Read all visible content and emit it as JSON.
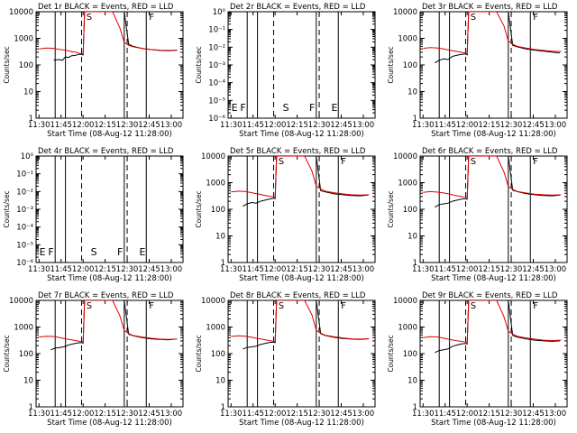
{
  "page": {
    "background": "#ffffff",
    "event_color": "#000000",
    "lld_color": "#e00000"
  },
  "common": {
    "x_tick_labels": [
      "11:30",
      "11:45",
      "12:00",
      "12:15",
      "12:30",
      "12:45",
      "13:00"
    ],
    "xlabel": "Start Time (08-Aug-12 11:28:00)",
    "ylabel": "Counts/sec",
    "log_tick_labels": [
      "1",
      "10",
      "100",
      "1000",
      "10000"
    ],
    "empty_tick_labels": [
      "10⁰",
      "10⁻¹",
      "10⁻²",
      "10⁻³",
      "10⁻⁴",
      "10⁻⁵",
      "10⁻⁶"
    ],
    "markers": [
      "E",
      "F",
      "S",
      "F",
      "E"
    ],
    "s_markers": [
      "S",
      "F"
    ]
  },
  "chart_data": [
    {
      "type": "line",
      "title": "Det 1r BLACK = Events, RED = LLD",
      "empty": false,
      "yscale": "log",
      "ylim": [
        1,
        10000
      ],
      "xlim": [
        "11:28",
        "13:08"
      ],
      "vlines_solid": [
        "11:41",
        "11:48",
        "12:28",
        "12:43"
      ],
      "vlines_dashed": [
        "11:59",
        "12:30"
      ],
      "series": [
        {
          "name": "BLACK = Events",
          "color": "#000000",
          "x": [
            "11:40",
            "11:43",
            "11:46",
            "11:48",
            "11:50",
            "11:52",
            "11:55",
            "11:57",
            "11:59",
            "12:00",
            "12:01",
            "12:28",
            "12:31",
            "12:34",
            "12:40",
            "12:46",
            "12:52",
            "12:58",
            "13:04"
          ],
          "y": [
            150,
            160,
            150,
            200,
            190,
            220,
            230,
            250,
            250,
            240,
            10000,
            10000,
            600,
            500,
            420,
            380,
            350,
            340,
            360
          ]
        },
        {
          "name": "RED = LLD",
          "color": "#e00000",
          "x": [
            "11:30",
            "11:35",
            "11:40",
            "11:44",
            "11:48",
            "11:52",
            "11:55",
            "11:58",
            "12:00",
            "12:01",
            "12:20",
            "12:25",
            "12:28",
            "12:31",
            "12:34",
            "12:40",
            "12:46",
            "12:52",
            "12:58",
            "13:04"
          ],
          "y": [
            400,
            430,
            420,
            380,
            360,
            320,
            300,
            270,
            260,
            10000,
            10000,
            2500,
            700,
            550,
            480,
            420,
            380,
            360,
            350,
            360
          ]
        }
      ]
    },
    {
      "type": "line",
      "title": "Det 2r BLACK = Events, RED = LLD",
      "empty": true,
      "yscale": "log",
      "ylim": [
        1e-06,
        1
      ],
      "xlim": [
        "11:28",
        "13:08"
      ],
      "vlines_solid": [
        "11:41",
        "11:48",
        "12:28",
        "12:43"
      ],
      "vlines_dashed": [
        "11:59",
        "12:30"
      ],
      "series": []
    },
    {
      "type": "line",
      "title": "Det 3r BLACK = Events, RED = LLD",
      "empty": false,
      "yscale": "log",
      "ylim": [
        1,
        10000
      ],
      "xlim": [
        "11:28",
        "13:08"
      ],
      "vlines_solid": [
        "11:41",
        "11:48",
        "12:28",
        "12:43"
      ],
      "vlines_dashed": [
        "11:59",
        "12:30"
      ],
      "series": [
        {
          "name": "BLACK = Events",
          "color": "#000000",
          "x": [
            "11:38",
            "11:41",
            "11:44",
            "11:47",
            "11:50",
            "11:53",
            "11:56",
            "11:59",
            "12:00",
            "12:01",
            "12:28",
            "12:31",
            "12:34",
            "12:40",
            "12:46",
            "12:52",
            "12:58",
            "13:03"
          ],
          "y": [
            120,
            150,
            170,
            160,
            210,
            230,
            250,
            260,
            240,
            10000,
            10000,
            550,
            480,
            400,
            360,
            330,
            300,
            280
          ]
        },
        {
          "name": "RED = LLD",
          "color": "#e00000",
          "x": [
            "11:30",
            "11:35",
            "11:40",
            "11:44",
            "11:48",
            "11:52",
            "11:56",
            "11:59",
            "12:00",
            "12:01",
            "12:20",
            "12:25",
            "12:28",
            "12:31",
            "12:34",
            "12:40",
            "12:46",
            "12:52",
            "12:58",
            "13:04"
          ],
          "y": [
            420,
            450,
            430,
            400,
            360,
            330,
            300,
            280,
            270,
            10000,
            10000,
            3000,
            800,
            600,
            500,
            430,
            380,
            350,
            330,
            320
          ]
        }
      ]
    },
    {
      "type": "line",
      "title": "Det 4r BLACK = Events, RED = LLD",
      "empty": true,
      "yscale": "log",
      "ylim": [
        1e-06,
        1
      ],
      "xlim": [
        "11:28",
        "13:08"
      ],
      "vlines_solid": [
        "11:41",
        "11:48",
        "12:28",
        "12:43"
      ],
      "vlines_dashed": [
        "11:59",
        "12:30"
      ],
      "series": []
    },
    {
      "type": "line",
      "title": "Det 5r BLACK = Events, RED = LLD",
      "empty": false,
      "yscale": "log",
      "ylim": [
        1,
        10000
      ],
      "xlim": [
        "11:28",
        "13:08"
      ],
      "vlines_solid": [
        "11:41",
        "11:48",
        "12:28",
        "12:43"
      ],
      "vlines_dashed": [
        "11:59",
        "12:30"
      ],
      "series": [
        {
          "name": "BLACK = Events",
          "color": "#000000",
          "x": [
            "11:38",
            "11:41",
            "11:44",
            "11:47",
            "11:50",
            "11:53",
            "11:56",
            "11:59",
            "12:00",
            "12:01",
            "12:28",
            "12:31",
            "12:34",
            "12:40",
            "12:46",
            "12:52",
            "12:58",
            "13:03"
          ],
          "y": [
            130,
            160,
            180,
            170,
            200,
            220,
            240,
            260,
            250,
            10000,
            10000,
            500,
            450,
            380,
            350,
            330,
            320,
            340
          ]
        },
        {
          "name": "RED = LLD",
          "color": "#e00000",
          "x": [
            "11:30",
            "11:35",
            "11:40",
            "11:44",
            "11:48",
            "11:52",
            "11:56",
            "11:59",
            "12:00",
            "12:01",
            "12:20",
            "12:25",
            "12:28",
            "12:31",
            "12:34",
            "12:40",
            "12:46",
            "12:52",
            "12:58",
            "13:04"
          ],
          "y": [
            450,
            480,
            460,
            420,
            380,
            340,
            310,
            290,
            280,
            10000,
            10000,
            2800,
            750,
            580,
            480,
            420,
            380,
            350,
            340,
            350
          ]
        }
      ]
    },
    {
      "type": "line",
      "title": "Det 6r BLACK = Events, RED = LLD",
      "empty": false,
      "yscale": "log",
      "ylim": [
        1,
        10000
      ],
      "xlim": [
        "11:28",
        "13:08"
      ],
      "vlines_solid": [
        "11:41",
        "11:48",
        "12:28",
        "12:43"
      ],
      "vlines_dashed": [
        "11:59",
        "12:30"
      ],
      "series": [
        {
          "name": "BLACK = Events",
          "color": "#000000",
          "x": [
            "11:38",
            "11:41",
            "11:44",
            "11:47",
            "11:50",
            "11:53",
            "11:56",
            "11:59",
            "12:00",
            "12:01",
            "12:28",
            "12:31",
            "12:34",
            "12:40",
            "12:46",
            "12:52",
            "12:58",
            "13:03"
          ],
          "y": [
            120,
            150,
            160,
            170,
            200,
            220,
            240,
            250,
            240,
            10000,
            10000,
            520,
            460,
            390,
            350,
            330,
            320,
            340
          ]
        },
        {
          "name": "RED = LLD",
          "color": "#e00000",
          "x": [
            "11:30",
            "11:35",
            "11:40",
            "11:44",
            "11:48",
            "11:52",
            "11:56",
            "11:59",
            "12:00",
            "12:01",
            "12:20",
            "12:25",
            "12:28",
            "12:31",
            "12:34",
            "12:40",
            "12:46",
            "12:52",
            "12:58",
            "13:04"
          ],
          "y": [
            430,
            460,
            440,
            410,
            370,
            330,
            300,
            280,
            270,
            10000,
            10000,
            2600,
            720,
            560,
            470,
            410,
            370,
            350,
            340,
            350
          ]
        }
      ]
    },
    {
      "type": "line",
      "title": "Det 7r BLACK = Events, RED = LLD",
      "empty": false,
      "yscale": "log",
      "ylim": [
        1,
        10000
      ],
      "xlim": [
        "11:28",
        "13:08"
      ],
      "vlines_solid": [
        "11:41",
        "11:48",
        "12:28",
        "12:43"
      ],
      "vlines_dashed": [
        "11:59",
        "12:30"
      ],
      "series": [
        {
          "name": "BLACK = Events",
          "color": "#000000",
          "x": [
            "11:38",
            "11:41",
            "11:44",
            "11:47",
            "11:50",
            "11:53",
            "11:56",
            "11:59",
            "12:00",
            "12:01",
            "12:28",
            "12:31",
            "12:34",
            "12:40",
            "12:46",
            "12:52",
            "12:58",
            "13:03"
          ],
          "y": [
            140,
            160,
            170,
            180,
            210,
            230,
            250,
            260,
            250,
            10000,
            10000,
            540,
            470,
            400,
            360,
            340,
            330,
            350
          ]
        },
        {
          "name": "RED = LLD",
          "color": "#e00000",
          "x": [
            "11:30",
            "11:35",
            "11:40",
            "11:44",
            "11:48",
            "11:52",
            "11:56",
            "11:59",
            "12:00",
            "12:01",
            "12:20",
            "12:25",
            "12:28",
            "12:31",
            "12:34",
            "12:40",
            "12:46",
            "12:52",
            "12:58",
            "13:04"
          ],
          "y": [
            420,
            450,
            440,
            400,
            360,
            330,
            300,
            280,
            270,
            10000,
            10000,
            2700,
            740,
            570,
            480,
            420,
            380,
            350,
            340,
            350
          ]
        }
      ]
    },
    {
      "type": "line",
      "title": "Det 8r BLACK = Events, RED = LLD",
      "empty": false,
      "yscale": "log",
      "ylim": [
        1,
        10000
      ],
      "xlim": [
        "11:28",
        "13:08"
      ],
      "vlines_solid": [
        "11:41",
        "11:48",
        "12:28",
        "12:43"
      ],
      "vlines_dashed": [
        "11:59",
        "12:30"
      ],
      "series": [
        {
          "name": "BLACK = Events",
          "color": "#000000",
          "x": [
            "11:38",
            "11:41",
            "11:44",
            "11:47",
            "11:50",
            "11:53",
            "11:56",
            "11:59",
            "12:00",
            "12:01",
            "12:28",
            "12:31",
            "12:34",
            "12:40",
            "12:46",
            "12:52",
            "12:58",
            "13:03"
          ],
          "y": [
            150,
            170,
            180,
            190,
            220,
            240,
            260,
            270,
            260,
            10000,
            10000,
            560,
            480,
            410,
            370,
            350,
            340,
            360
          ]
        },
        {
          "name": "RED = LLD",
          "color": "#e00000",
          "x": [
            "11:30",
            "11:35",
            "11:40",
            "11:44",
            "11:48",
            "11:52",
            "11:56",
            "11:59",
            "12:00",
            "12:01",
            "12:20",
            "12:25",
            "12:28",
            "12:31",
            "12:34",
            "12:40",
            "12:46",
            "12:52",
            "12:58",
            "13:04"
          ],
          "y": [
            440,
            470,
            450,
            410,
            370,
            340,
            310,
            290,
            280,
            10000,
            10000,
            2900,
            760,
            590,
            490,
            430,
            390,
            360,
            350,
            360
          ]
        }
      ]
    },
    {
      "type": "line",
      "title": "Det 9r BLACK = Events, RED = LLD",
      "empty": false,
      "yscale": "log",
      "ylim": [
        1,
        10000
      ],
      "xlim": [
        "11:28",
        "13:08"
      ],
      "vlines_solid": [
        "11:41",
        "11:48",
        "12:28",
        "12:43"
      ],
      "vlines_dashed": [
        "11:59",
        "12:30"
      ],
      "series": [
        {
          "name": "BLACK = Events",
          "color": "#000000",
          "x": [
            "11:38",
            "11:41",
            "11:44",
            "11:47",
            "11:50",
            "11:53",
            "11:56",
            "11:59",
            "12:00",
            "12:01",
            "12:28",
            "12:31",
            "12:34",
            "12:40",
            "12:46",
            "12:52",
            "12:58",
            "13:03"
          ],
          "y": [
            110,
            130,
            140,
            150,
            190,
            210,
            230,
            240,
            230,
            10000,
            10000,
            480,
            420,
            360,
            320,
            300,
            290,
            300
          ]
        },
        {
          "name": "RED = LLD",
          "color": "#e00000",
          "x": [
            "11:30",
            "11:35",
            "11:40",
            "11:44",
            "11:48",
            "11:52",
            "11:56",
            "11:59",
            "12:00",
            "12:01",
            "12:20",
            "12:25",
            "12:28",
            "12:31",
            "12:34",
            "12:40",
            "12:46",
            "12:52",
            "12:58",
            "13:04"
          ],
          "y": [
            400,
            430,
            420,
            380,
            340,
            310,
            290,
            270,
            260,
            10000,
            10000,
            2500,
            700,
            540,
            450,
            390,
            350,
            320,
            310,
            320
          ]
        }
      ]
    }
  ]
}
